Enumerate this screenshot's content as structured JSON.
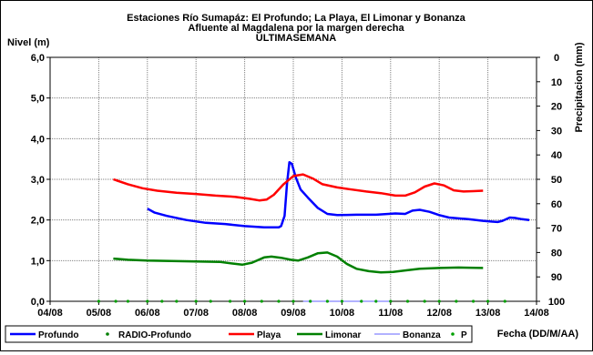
{
  "chart_data": {
    "type": "line",
    "title": [
      "Estaciones Río Sumapáz: El Profundo; La Playa, El Limonar y Bonanza",
      "Afluente al Magdalena por la margen derecha",
      "ULTIMASEMANA"
    ],
    "ylabel": "Nivel (m)",
    "y2label": "Precipitacion (mm)",
    "xlabel": "Fecha (DD/M/AA)",
    "x_ticks": [
      "04/08",
      "05/08",
      "06/08",
      "07/08",
      "08/08",
      "09/08",
      "10/08",
      "11/08",
      "12/08",
      "13/08",
      "14/08"
    ],
    "y_ticks": [
      "0,0",
      "1,0",
      "2,0",
      "3,0",
      "4,0",
      "5,0",
      "6,0"
    ],
    "y2_ticks": [
      "0",
      "10",
      "20",
      "30",
      "40",
      "50",
      "60",
      "70",
      "80",
      "90",
      "100"
    ],
    "xlim": [
      0,
      10
    ],
    "ylim": [
      0,
      6
    ],
    "y2lim": [
      100,
      0
    ],
    "grid": true,
    "legend_position": "bottom",
    "series": [
      {
        "name": "Profundo",
        "color": "#0000ff",
        "style": "line",
        "points": [
          [
            2.0,
            2.28
          ],
          [
            2.15,
            2.18
          ],
          [
            2.4,
            2.1
          ],
          [
            2.8,
            2.0
          ],
          [
            3.2,
            1.93
          ],
          [
            3.6,
            1.9
          ],
          [
            4.0,
            1.85
          ],
          [
            4.4,
            1.82
          ],
          [
            4.7,
            1.82
          ],
          [
            4.75,
            1.85
          ],
          [
            4.82,
            2.1
          ],
          [
            4.87,
            2.9
          ],
          [
            4.92,
            3.42
          ],
          [
            4.97,
            3.38
          ],
          [
            5.05,
            3.05
          ],
          [
            5.15,
            2.75
          ],
          [
            5.3,
            2.55
          ],
          [
            5.5,
            2.3
          ],
          [
            5.7,
            2.15
          ],
          [
            5.9,
            2.12
          ],
          [
            6.3,
            2.13
          ],
          [
            6.7,
            2.13
          ],
          [
            7.1,
            2.16
          ],
          [
            7.3,
            2.15
          ],
          [
            7.45,
            2.23
          ],
          [
            7.6,
            2.25
          ],
          [
            7.8,
            2.2
          ],
          [
            8.0,
            2.12
          ],
          [
            8.2,
            2.06
          ],
          [
            8.6,
            2.02
          ],
          [
            8.9,
            1.98
          ],
          [
            9.1,
            1.96
          ],
          [
            9.2,
            1.95
          ],
          [
            9.3,
            1.98
          ],
          [
            9.45,
            2.06
          ],
          [
            9.55,
            2.05
          ],
          [
            9.7,
            2.02
          ],
          [
            9.85,
            2.0
          ]
        ]
      },
      {
        "name": "RADIO-Profundo",
        "color": "#007f00",
        "style": "points",
        "points": []
      },
      {
        "name": "Playa",
        "color": "#ff0000",
        "style": "line",
        "points": [
          [
            1.3,
            3.0
          ],
          [
            1.6,
            2.88
          ],
          [
            1.9,
            2.78
          ],
          [
            2.2,
            2.72
          ],
          [
            2.6,
            2.67
          ],
          [
            3.0,
            2.64
          ],
          [
            3.4,
            2.6
          ],
          [
            3.8,
            2.57
          ],
          [
            4.1,
            2.52
          ],
          [
            4.3,
            2.48
          ],
          [
            4.45,
            2.5
          ],
          [
            4.6,
            2.62
          ],
          [
            4.8,
            2.88
          ],
          [
            5.0,
            3.08
          ],
          [
            5.2,
            3.12
          ],
          [
            5.4,
            3.02
          ],
          [
            5.6,
            2.88
          ],
          [
            5.9,
            2.8
          ],
          [
            6.2,
            2.75
          ],
          [
            6.5,
            2.7
          ],
          [
            6.8,
            2.66
          ],
          [
            7.1,
            2.6
          ],
          [
            7.3,
            2.6
          ],
          [
            7.5,
            2.68
          ],
          [
            7.7,
            2.82
          ],
          [
            7.9,
            2.9
          ],
          [
            8.1,
            2.85
          ],
          [
            8.3,
            2.73
          ],
          [
            8.5,
            2.7
          ],
          [
            8.7,
            2.71
          ],
          [
            8.9,
            2.72
          ]
        ]
      },
      {
        "name": "Limonar",
        "color": "#008000",
        "style": "line",
        "points": [
          [
            1.3,
            1.05
          ],
          [
            1.6,
            1.02
          ],
          [
            2.0,
            1.0
          ],
          [
            2.5,
            0.99
          ],
          [
            3.0,
            0.98
          ],
          [
            3.5,
            0.97
          ],
          [
            3.75,
            0.93
          ],
          [
            3.95,
            0.9
          ],
          [
            4.15,
            0.95
          ],
          [
            4.4,
            1.08
          ],
          [
            4.55,
            1.1
          ],
          [
            4.75,
            1.07
          ],
          [
            4.95,
            1.02
          ],
          [
            5.1,
            1.0
          ],
          [
            5.3,
            1.08
          ],
          [
            5.5,
            1.18
          ],
          [
            5.7,
            1.2
          ],
          [
            5.9,
            1.1
          ],
          [
            6.1,
            0.92
          ],
          [
            6.3,
            0.8
          ],
          [
            6.55,
            0.74
          ],
          [
            6.8,
            0.71
          ],
          [
            7.05,
            0.72
          ],
          [
            7.3,
            0.76
          ],
          [
            7.6,
            0.8
          ],
          [
            8.0,
            0.82
          ],
          [
            8.4,
            0.83
          ],
          [
            8.9,
            0.82
          ]
        ]
      },
      {
        "name": "Bonanza",
        "color": "#6666ff",
        "style": "line",
        "points": [
          [
            5.2,
            0.0
          ],
          [
            5.5,
            0.0
          ],
          [
            5.8,
            0.0
          ],
          [
            6.1,
            0.0
          ],
          [
            6.4,
            0.0
          ],
          [
            6.7,
            0.0
          ],
          [
            7.0,
            0.0
          ]
        ]
      },
      {
        "name": "P",
        "color": "#00a000",
        "style": "points",
        "points": [
          [
            1.0,
            100
          ],
          [
            1.35,
            100
          ],
          [
            1.6,
            100
          ],
          [
            2.0,
            100
          ],
          [
            2.3,
            100
          ],
          [
            2.6,
            100
          ],
          [
            3.0,
            100
          ],
          [
            3.3,
            100
          ],
          [
            3.7,
            100
          ],
          [
            4.0,
            100
          ],
          [
            4.35,
            100
          ],
          [
            4.7,
            100
          ],
          [
            5.0,
            100
          ],
          [
            5.35,
            100
          ],
          [
            5.7,
            100
          ],
          [
            6.0,
            100
          ],
          [
            6.4,
            100
          ],
          [
            6.7,
            100
          ],
          [
            7.0,
            100
          ],
          [
            7.35,
            100
          ],
          [
            7.7,
            100
          ],
          [
            8.0,
            100
          ],
          [
            8.35,
            100
          ],
          [
            8.7,
            100
          ],
          [
            9.0,
            100
          ],
          [
            9.35,
            100
          ]
        ]
      }
    ]
  }
}
